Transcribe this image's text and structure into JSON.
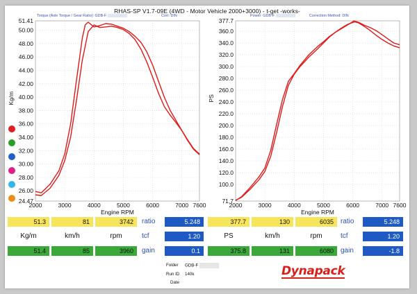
{
  "title": "RHAS-SP V1.7-09E  (4WD - Motor Vehicle 2000+3000) - t-get -works-",
  "left_header": {
    "torque": "Torque (Axle Torque / Gear Ratio): GDB-F",
    "corr": "Corr: DIN"
  },
  "right_header": {
    "power": "Power: GDB-F",
    "corr": "Correction Method: DIN"
  },
  "legend_colors": [
    "#e02020",
    "#28a028",
    "#2060c8",
    "#e0208a",
    "#30b8e8",
    "#f08c18"
  ],
  "chart_data": [
    {
      "type": "line",
      "ylabel": "Kg/m",
      "xlabel": "Engine RPM",
      "ylim": [
        24.47,
        51.41
      ],
      "xlim": [
        2000,
        7600
      ],
      "yticks": [
        "51.41",
        "50.00",
        "48.00",
        "46.00",
        "44.00",
        "42.00",
        "40.00",
        "38.00",
        "36.00",
        "34.00",
        "32.00",
        "30.00",
        "28.00",
        "26.00",
        "24.47"
      ],
      "ytick_values": [
        51.41,
        50,
        48,
        46,
        44,
        42,
        40,
        38,
        36,
        34,
        32,
        30,
        28,
        26,
        24.47
      ],
      "xticks": [
        "2000",
        "3000",
        "4000",
        "5000",
        "6000",
        "7000",
        "7600"
      ],
      "xtick_values": [
        2000,
        3000,
        4000,
        5000,
        6000,
        7000,
        7600
      ],
      "series": [
        {
          "color": "#e01818",
          "x": [
            2000,
            2200,
            2500,
            2800,
            3000,
            3200,
            3400,
            3600,
            3700,
            3800,
            4000,
            4200,
            4400,
            4600,
            4800,
            5000,
            5200,
            5400,
            5600,
            5800,
            6000,
            6200,
            6400,
            6600,
            6800,
            7000,
            7200,
            7400,
            7600
          ],
          "y": [
            25.9,
            25.7,
            27.0,
            29.0,
            31.5,
            36.0,
            42.5,
            48.8,
            50.8,
            51.2,
            50.5,
            50.7,
            51.0,
            50.9,
            50.6,
            50.3,
            49.8,
            49.1,
            48.2,
            46.8,
            44.8,
            42.4,
            40.0,
            38.0,
            36.5,
            35.0,
            33.6,
            32.3,
            31.5
          ]
        },
        {
          "color": "#e01818",
          "x": [
            2000,
            2200,
            2500,
            2800,
            3000,
            3200,
            3400,
            3600,
            3800,
            4000,
            4200,
            4400,
            4600,
            4800,
            5000,
            5200,
            5400,
            5600,
            5800,
            6000,
            6200,
            6400,
            6600,
            6800,
            7000,
            7200,
            7400,
            7600
          ],
          "y": [
            25.4,
            25.3,
            26.4,
            28.3,
            30.5,
            34.0,
            39.5,
            45.5,
            49.8,
            50.8,
            50.4,
            50.5,
            50.6,
            50.4,
            50.1,
            49.5,
            48.6,
            47.2,
            45.3,
            43.0,
            40.6,
            38.6,
            37.3,
            36.2,
            35.0,
            33.5,
            32.2,
            31.4
          ]
        }
      ]
    },
    {
      "type": "line",
      "ylabel": "PS",
      "xlabel": "Engine RPM",
      "ylim": [
        71.7,
        377.7
      ],
      "xlim": [
        2000,
        7600
      ],
      "yticks": [
        "377.7",
        "360.0",
        "340.0",
        "320.0",
        "300.0",
        "280.0",
        "260.0",
        "240.0",
        "220.0",
        "200.0",
        "180.0",
        "160.0",
        "140.0",
        "120.0",
        "100.0",
        "71.7"
      ],
      "ytick_values": [
        377.7,
        360,
        340,
        320,
        300,
        280,
        260,
        240,
        220,
        200,
        180,
        160,
        140,
        120,
        100,
        71.7
      ],
      "xticks": [
        "2000",
        "3000",
        "4000",
        "5000",
        "6000",
        "7000",
        "7600"
      ],
      "xtick_values": [
        2000,
        3000,
        4000,
        5000,
        6000,
        7000,
        7600
      ],
      "series": [
        {
          "color": "#e01818",
          "x": [
            2000,
            2200,
            2500,
            2800,
            3000,
            3200,
            3400,
            3600,
            3800,
            4000,
            4200,
            4500,
            4800,
            5000,
            5200,
            5400,
            5600,
            5800,
            6000,
            6035,
            6200,
            6400,
            6600,
            6800,
            7000,
            7200,
            7400,
            7600
          ],
          "y": [
            72.5,
            79,
            95,
            113,
            128,
            158,
            202,
            244,
            275,
            288,
            302,
            320,
            334,
            342,
            351,
            358,
            364,
            370,
            376,
            377.7,
            375,
            370,
            366,
            361,
            354,
            347,
            340,
            337
          ]
        },
        {
          "color": "#e01818",
          "x": [
            2000,
            2200,
            2500,
            2800,
            3000,
            3200,
            3400,
            3600,
            3800,
            4000,
            4200,
            4500,
            4800,
            5000,
            5200,
            5400,
            5600,
            5800,
            6000,
            6080,
            6200,
            6400,
            6600,
            6800,
            7000,
            7200,
            7400,
            7600
          ],
          "y": [
            73,
            78,
            92,
            108,
            122,
            148,
            188,
            232,
            268,
            287,
            300,
            316,
            330,
            340,
            350,
            358,
            365,
            371,
            375,
            375.8,
            374,
            368,
            361,
            353,
            346,
            340,
            335,
            332
          ]
        }
      ]
    }
  ],
  "readout_left": {
    "row1": [
      "51.3",
      "81",
      "3742"
    ],
    "units": [
      "Kg/m",
      "km/h",
      "rpm"
    ],
    "row3": [
      "51.4",
      "85",
      "3960"
    ]
  },
  "readout_right": {
    "row1": [
      "377.7",
      "130",
      "6035"
    ],
    "units": [
      "PS",
      "km/h",
      "rpm"
    ],
    "row3": [
      "375.8",
      "131",
      "6080"
    ]
  },
  "ratio_left": {
    "labels": [
      "ratio",
      "tcf",
      "gain"
    ],
    "values": [
      "5.248",
      "1.20",
      "0.1"
    ]
  },
  "ratio_right": {
    "labels": [
      "ratio",
      "tcf",
      "gain"
    ],
    "values": [
      "5.248",
      "1.20",
      "-1.8"
    ]
  },
  "info": {
    "folder_label": "Folder",
    "folder_value": "GDB-F",
    "runid_label": "Run ID",
    "runid_value": "140k",
    "date_label": "Date",
    "date_value": ""
  },
  "logo": "Dynapack"
}
